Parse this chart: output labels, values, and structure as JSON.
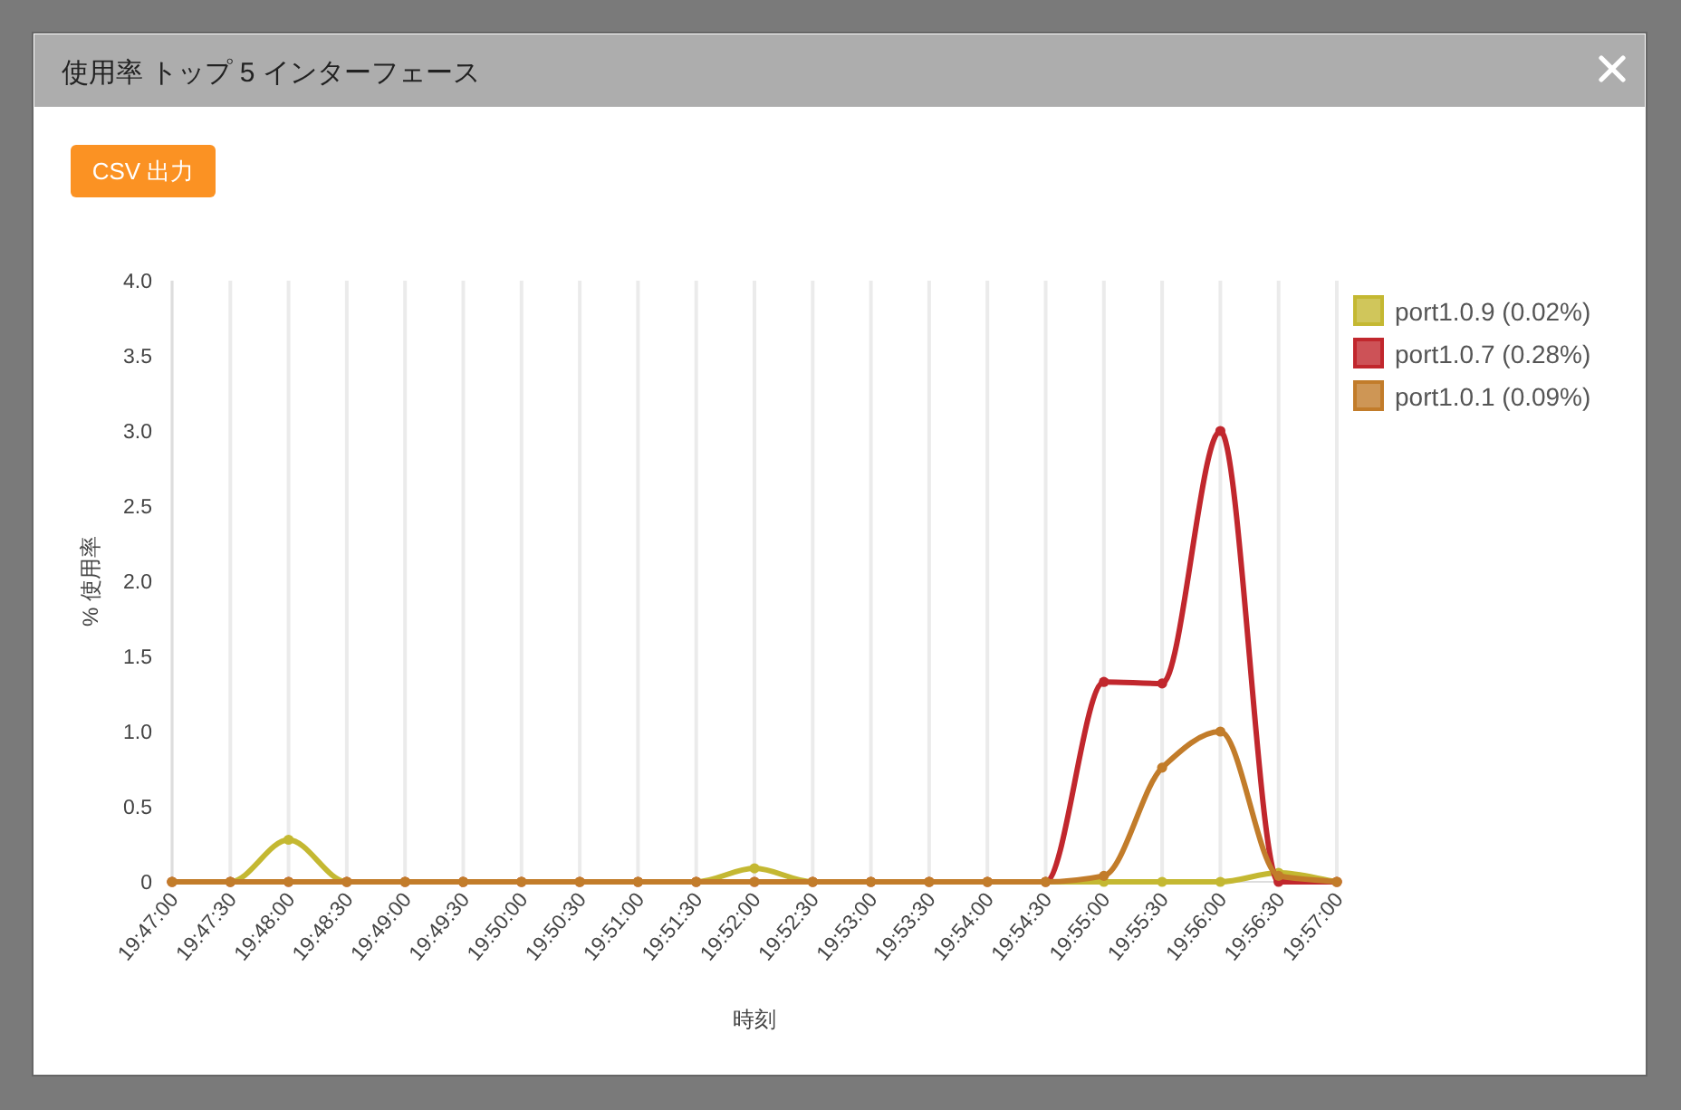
{
  "chart_data": {
    "type": "line",
    "title": "使用率 トップ 5 インターフェース",
    "annotations": [
      "CSV 出力"
    ],
    "xlabel": "時刻",
    "ylabel": "% 使用率",
    "categories": [
      "19:47:00",
      "19:47:30",
      "19:48:00",
      "19:48:30",
      "19:49:00",
      "19:49:30",
      "19:50:00",
      "19:50:30",
      "19:51:00",
      "19:51:30",
      "19:52:00",
      "19:52:30",
      "19:53:00",
      "19:53:30",
      "19:54:00",
      "19:54:30",
      "19:55:00",
      "19:55:30",
      "19:56:00",
      "19:56:30",
      "19:57:00"
    ],
    "ylim": [
      0,
      4
    ],
    "yticks": [
      0,
      0.5,
      {
        "value": 1,
        "label": "1.0"
      },
      1.5,
      {
        "value": 2,
        "label": "2.0"
      },
      2.5,
      {
        "value": 3,
        "label": "3.0"
      },
      3.5,
      {
        "value": 4,
        "label": "4.0"
      }
    ],
    "grid": "x",
    "legend": "top right",
    "marker": "circle",
    "line_style": "solid",
    "series": [
      {
        "name": "port1.0.9 (0.02%)",
        "color": "#c4b832",
        "values": [
          0,
          0,
          0.28,
          0,
          0,
          0,
          0,
          0,
          0,
          0,
          0.09,
          0,
          0,
          0,
          0,
          0,
          0,
          0,
          0,
          0.06,
          0
        ]
      },
      {
        "name": "port1.0.7 (0.28%)",
        "color": "#c1272d",
        "values": [
          0,
          0,
          0,
          0,
          0,
          0,
          0,
          0,
          0,
          0,
          0,
          0,
          0,
          0,
          0,
          0,
          1.33,
          1.32,
          3.0,
          0,
          0
        ]
      },
      {
        "name": "port1.0.1 (0.09%)",
        "color": "#c27c2a",
        "values": [
          0,
          0,
          0,
          0,
          0,
          0,
          0,
          0,
          0,
          0,
          0,
          0,
          0,
          0,
          0,
          0,
          0.04,
          0.76,
          1.0,
          0.04,
          0
        ]
      }
    ]
  }
}
